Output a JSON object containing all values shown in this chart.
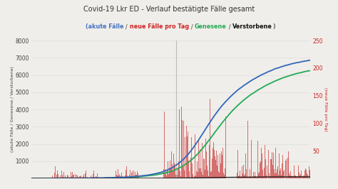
{
  "title": "Covid-19 Lkr ED - Verlauf bestätigte Fälle gesamt",
  "subtitle_parts": [
    {
      "text": "(akute Fälle",
      "color": "#4472c4"
    },
    {
      "text": " / ",
      "color": "#666666"
    },
    {
      "text": "neue Fälle pro Tag",
      "color": "#cc2222"
    },
    {
      "text": " / ",
      "color": "#666666"
    },
    {
      "text": "Genesene",
      "color": "#22aa55"
    },
    {
      "text": " / ",
      "color": "#666666"
    },
    {
      "text": "Verstorbene",
      "color": "#111111"
    },
    {
      "text": ")",
      "color": "#666666"
    }
  ],
  "ylabel_left": "(akute Fälle / Genesene / Verstorbene)",
  "ylabel_right": "(neue Fälle pro Tag)",
  "ylim_left": [
    0,
    8000
  ],
  "ylim_right": [
    0,
    250
  ],
  "yticks_left": [
    0,
    1000,
    2000,
    3000,
    4000,
    5000,
    6000,
    7000,
    8000
  ],
  "yticks_right": [
    0,
    50,
    100,
    150,
    200,
    250
  ],
  "background_color": "#f0eeea",
  "plot_bg": "#f0eeea",
  "grid_color": "#dddddd",
  "n_points": 400
}
